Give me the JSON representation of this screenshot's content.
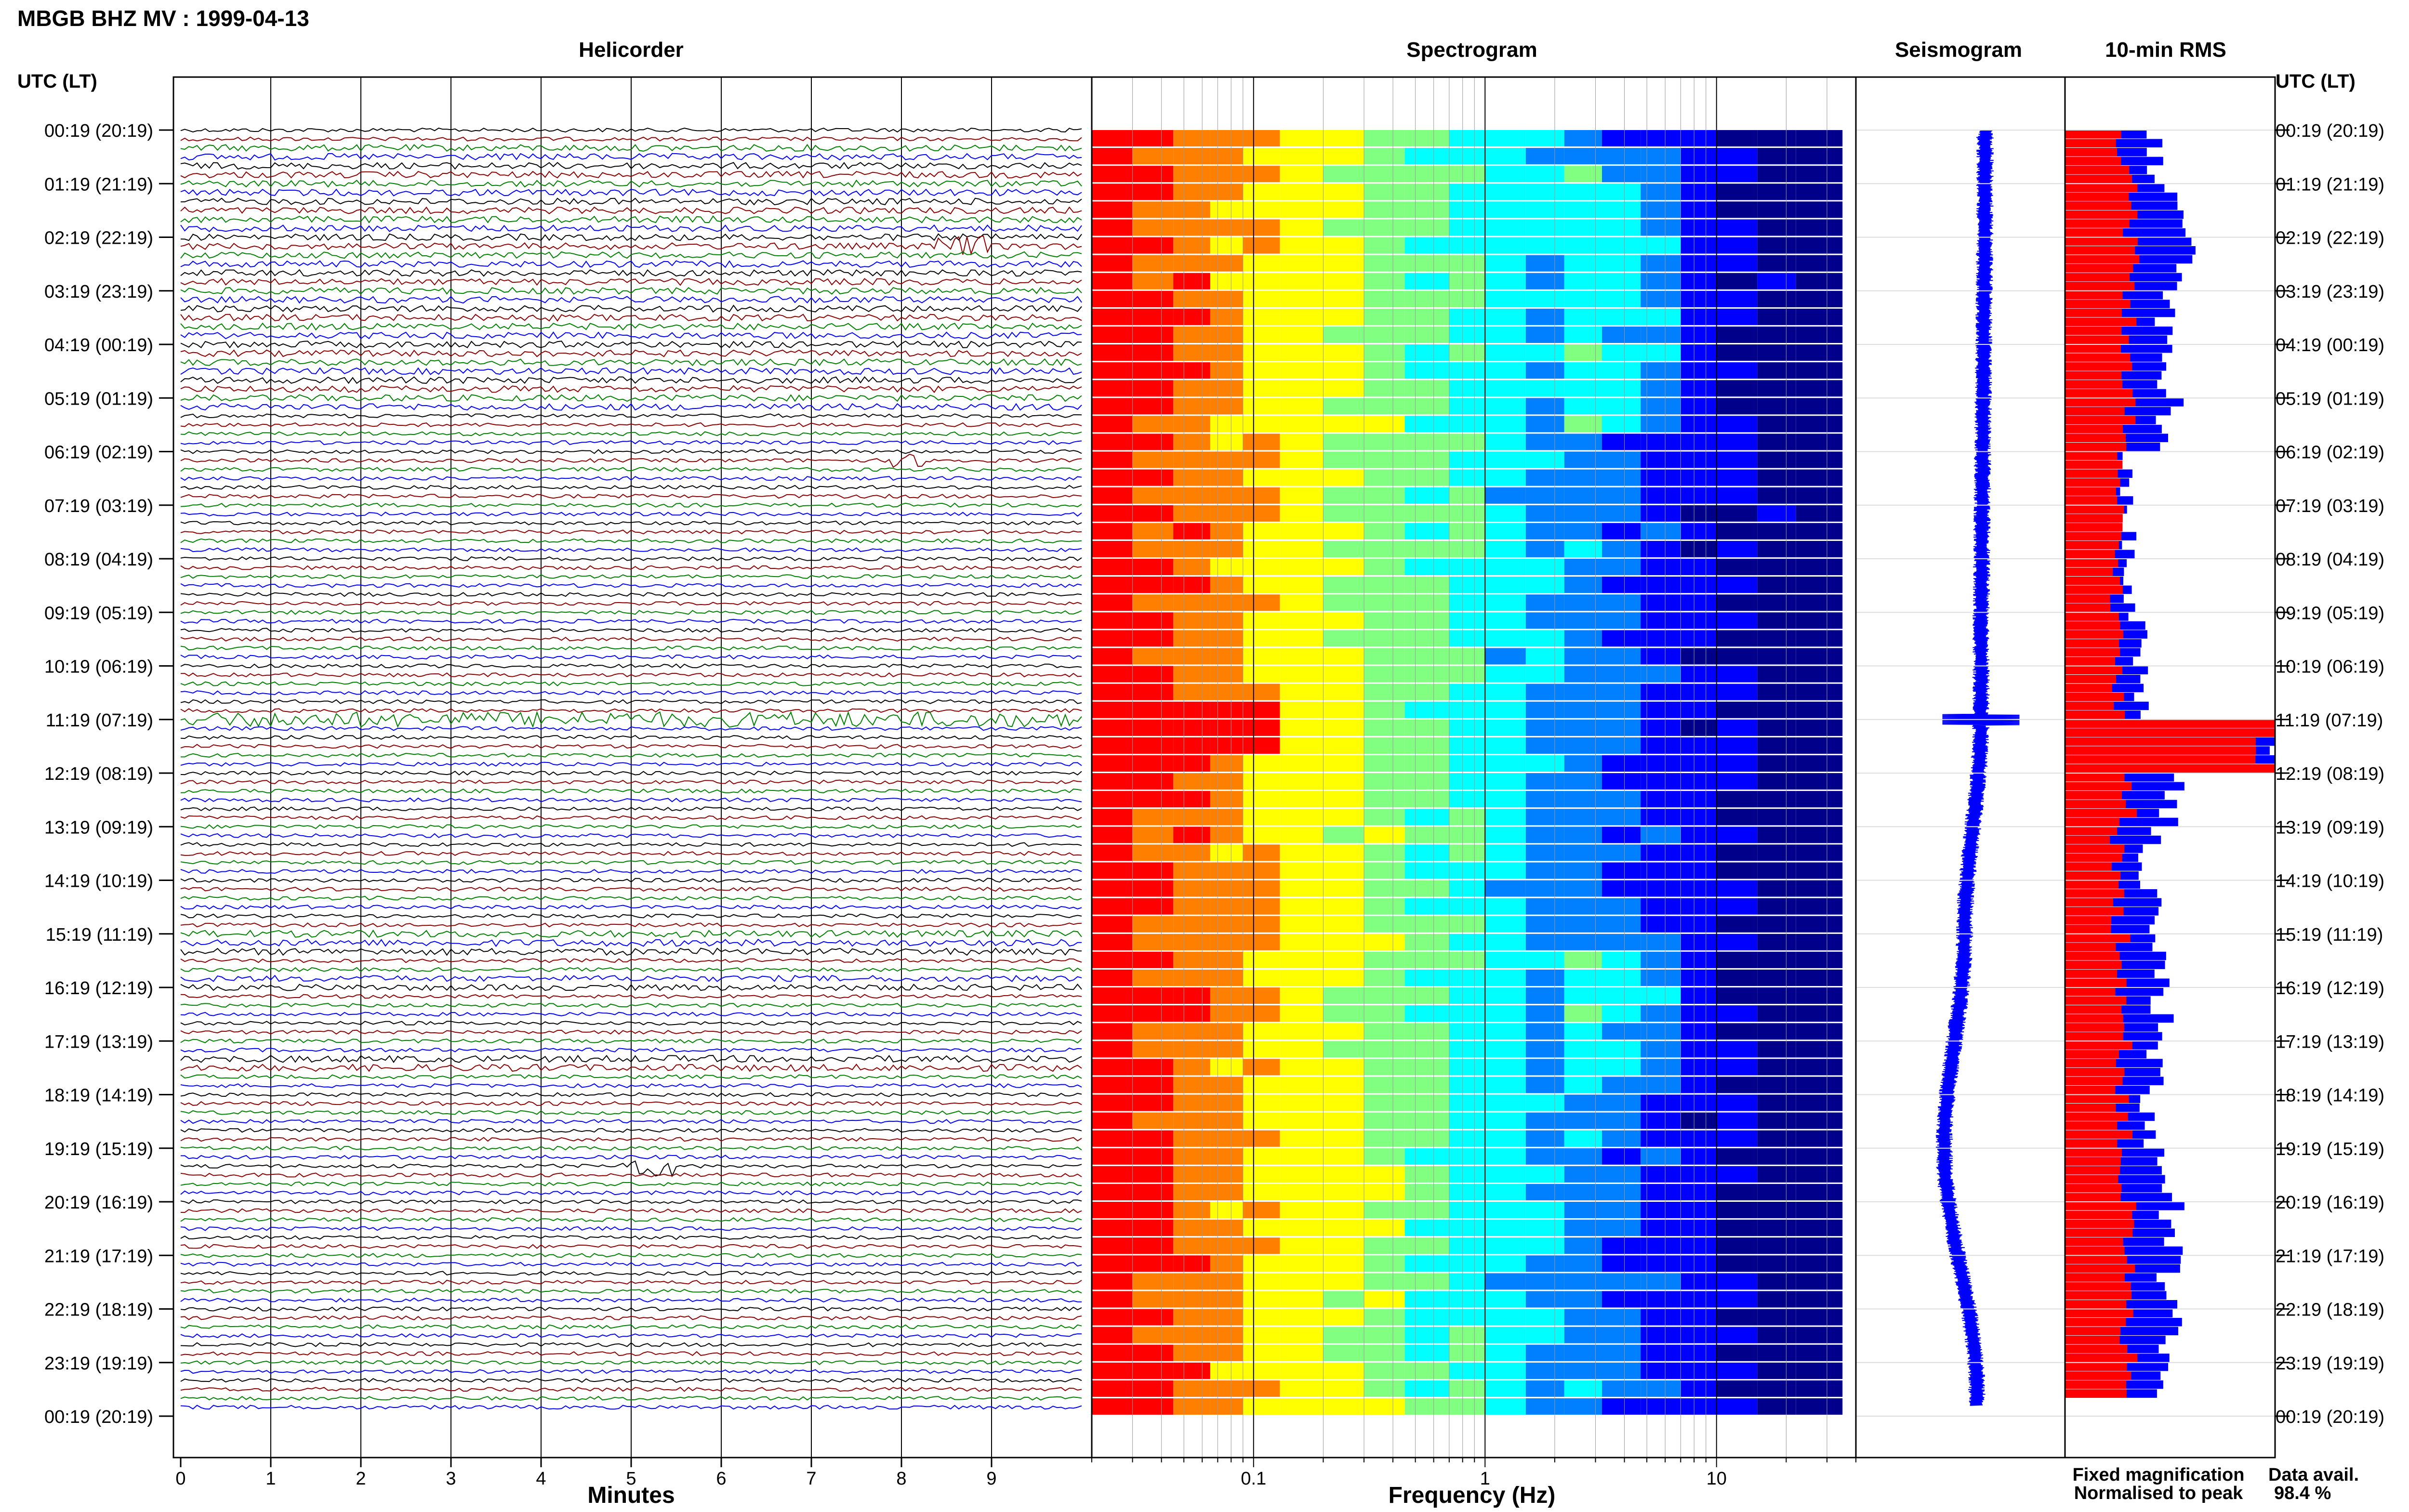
{
  "page_title": "MBGB BHZ MV : 1999-04-13",
  "panels": {
    "helicorder_title": "Helicorder",
    "spectrogram_title": "Spectrogram",
    "seismogram_title": "Seismogram",
    "rms_title": "10-min RMS"
  },
  "axis_left_header": "UTC (LT)",
  "axis_right_header": "UTC (LT)",
  "time_labels": [
    "00:19 (20:19)",
    "01:19 (21:19)",
    "02:19 (22:19)",
    "03:19 (23:19)",
    "04:19 (00:19)",
    "05:19 (01:19)",
    "06:19 (02:19)",
    "07:19 (03:19)",
    "08:19 (04:19)",
    "09:19 (05:19)",
    "10:19 (06:19)",
    "11:19 (07:19)",
    "12:19 (08:19)",
    "13:19 (09:19)",
    "14:19 (10:19)",
    "15:19 (11:19)",
    "16:19 (12:19)",
    "17:19 (13:19)",
    "18:19 (14:19)",
    "19:19 (15:19)",
    "20:19 (16:19)",
    "21:19 (17:19)",
    "22:19 (18:19)",
    "23:19 (19:19)",
    "00:19 (20:19)"
  ],
  "helicorder_xlabel": "Minutes",
  "helicorder_ticks": [
    "0",
    "1",
    "2",
    "3",
    "4",
    "5",
    "6",
    "7",
    "8",
    "9"
  ],
  "spectrogram_xlabel": "Frequency (Hz)",
  "spectrogram_ticks": [
    "0.1",
    "1",
    "10"
  ],
  "legend": {
    "fixed": "Fixed magnification",
    "normalised": "Normalised to peak",
    "fixed_color": "#0000ff",
    "normalised_color": "#ff0000"
  },
  "data_avail_label": "Data avail.",
  "data_avail_value": "98.4 %",
  "colors": {
    "trace_cycle": [
      "#000000",
      "#8b0000",
      "#008000",
      "#0000ff"
    ],
    "spectrogram_cmap": [
      "#00008b",
      "#0000ff",
      "#0080ff",
      "#00ffff",
      "#80ff80",
      "#ffff00",
      "#ff8000",
      "#ff0000"
    ]
  },
  "chart_data": [
    {
      "type": "line",
      "name": "Helicorder",
      "xlabel": "Minutes",
      "xlim": [
        0,
        10
      ],
      "rows": 144,
      "row_interval_min": 10,
      "events": [
        {
          "row_hour": 2.2,
          "minute": 8.5,
          "amplitude": "large",
          "color": "#8b0000"
        },
        {
          "row_hour": 6.1,
          "minute": 8.0,
          "amplitude": "medium",
          "color": "#000000"
        },
        {
          "row_hour": 11.0,
          "minute": 0,
          "minute_end": 10,
          "amplitude": "high-noise"
        },
        {
          "row_hour": 19.3,
          "minute": 5.0,
          "amplitude": "large",
          "color": "#000000"
        }
      ]
    },
    {
      "type": "heatmap",
      "name": "Spectrogram",
      "xlabel": "Frequency (Hz)",
      "xscale": "log",
      "xlim": [
        0.02,
        40
      ],
      "y": "time (24 h, 10-min rows)"
    },
    {
      "type": "line",
      "name": "Seismogram",
      "description_free": true,
      "drift_hours": [
        0,
        11,
        15,
        19,
        23.5
      ],
      "drift_offset": [
        0.3,
        0.25,
        0.05,
        -0.2,
        0.2
      ]
    },
    {
      "type": "bar",
      "name": "10-min RMS",
      "series": [
        {
          "name": "Fixed magnification",
          "color": "#0000ff",
          "hourly_values": [
            0.45,
            0.55,
            0.6,
            0.5,
            0.45,
            0.5,
            0.3,
            0.3,
            0.3,
            0.35,
            0.35,
            1.0,
            0.5,
            0.4,
            0.4,
            0.45,
            0.45,
            0.45,
            0.4,
            0.45,
            0.5,
            0.5,
            0.5,
            0.45
          ]
        },
        {
          "name": "Normalised to peak",
          "color": "#ff0000",
          "hourly_values": [
            0.28,
            0.32,
            0.33,
            0.3,
            0.28,
            0.3,
            0.25,
            0.25,
            0.25,
            0.25,
            0.25,
            1.0,
            0.3,
            0.25,
            0.25,
            0.28,
            0.28,
            0.28,
            0.28,
            0.28,
            0.3,
            0.3,
            0.3,
            0.28
          ]
        }
      ],
      "xlim": [
        0,
        1
      ]
    }
  ]
}
